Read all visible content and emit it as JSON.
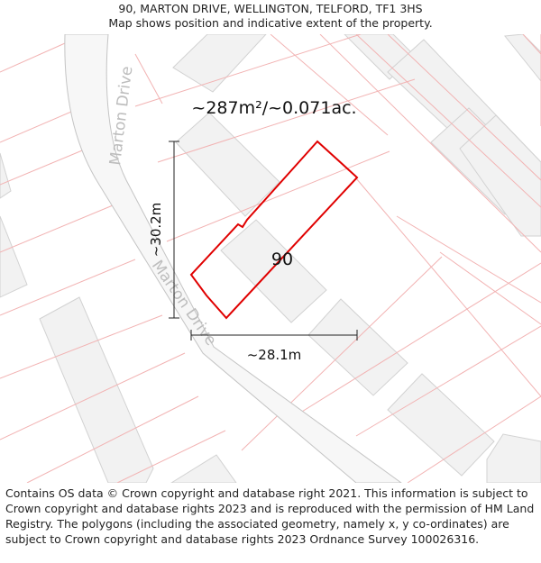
{
  "header": {
    "title": "90, MARTON DRIVE, WELLINGTON, TELFORD, TF1 3HS",
    "subtitle": "Map shows position and indicative extent of the property."
  },
  "map": {
    "area_label": "~287m²/~0.071ac.",
    "plot_number": "90",
    "dim_vertical": "~30.2m",
    "dim_horizontal": "~28.1m",
    "road_name_upper": "Marton Drive",
    "road_name_lower": "Marton Drive",
    "colors": {
      "boundary": "#e00000",
      "parcel_lines": "#f2b3b3",
      "building_fill": "#f2f2f2",
      "building_stroke": "#d2d2d2",
      "road_fill": "#f7f7f7",
      "road_stroke": "#c4c4c4",
      "road_text": "#bdbdbd"
    }
  },
  "footer": {
    "attribution": "Contains OS data © Crown copyright and database right 2021. This information is subject to Crown copyright and database rights 2023 and is reproduced with the permission of HM Land Registry. The polygons (including the associated geometry, namely x, y co-ordinates) are subject to Crown copyright and database rights 2023 Ordnance Survey 100026316."
  }
}
